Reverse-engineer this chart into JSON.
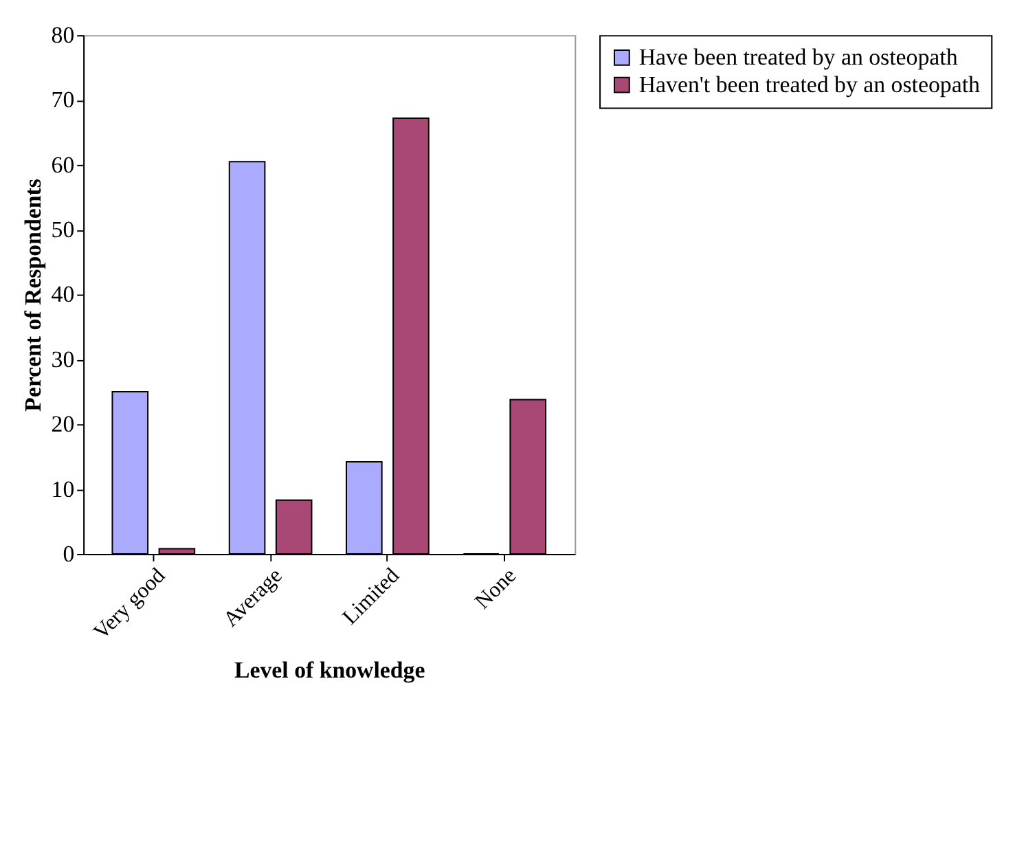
{
  "chart_data": {
    "type": "bar",
    "xlabel": "Level of knowledge",
    "ylabel": "Percent of Respondents",
    "categories": [
      "Very good",
      "Average",
      "Limited",
      "None"
    ],
    "series": [
      {
        "name": "Have been treated by an osteopath",
        "color": "#aaaaff",
        "values": [
          25,
          60.5,
          14.2,
          0
        ]
      },
      {
        "name": "Haven't been treated by an osteopath",
        "color": "#a94874",
        "values": [
          0.8,
          8.3,
          67.2,
          23.8
        ]
      }
    ],
    "ylim": [
      0,
      80
    ],
    "yticks": [
      0,
      10,
      20,
      30,
      40,
      50,
      60,
      70,
      80
    ],
    "grid": false,
    "legend": "right"
  }
}
